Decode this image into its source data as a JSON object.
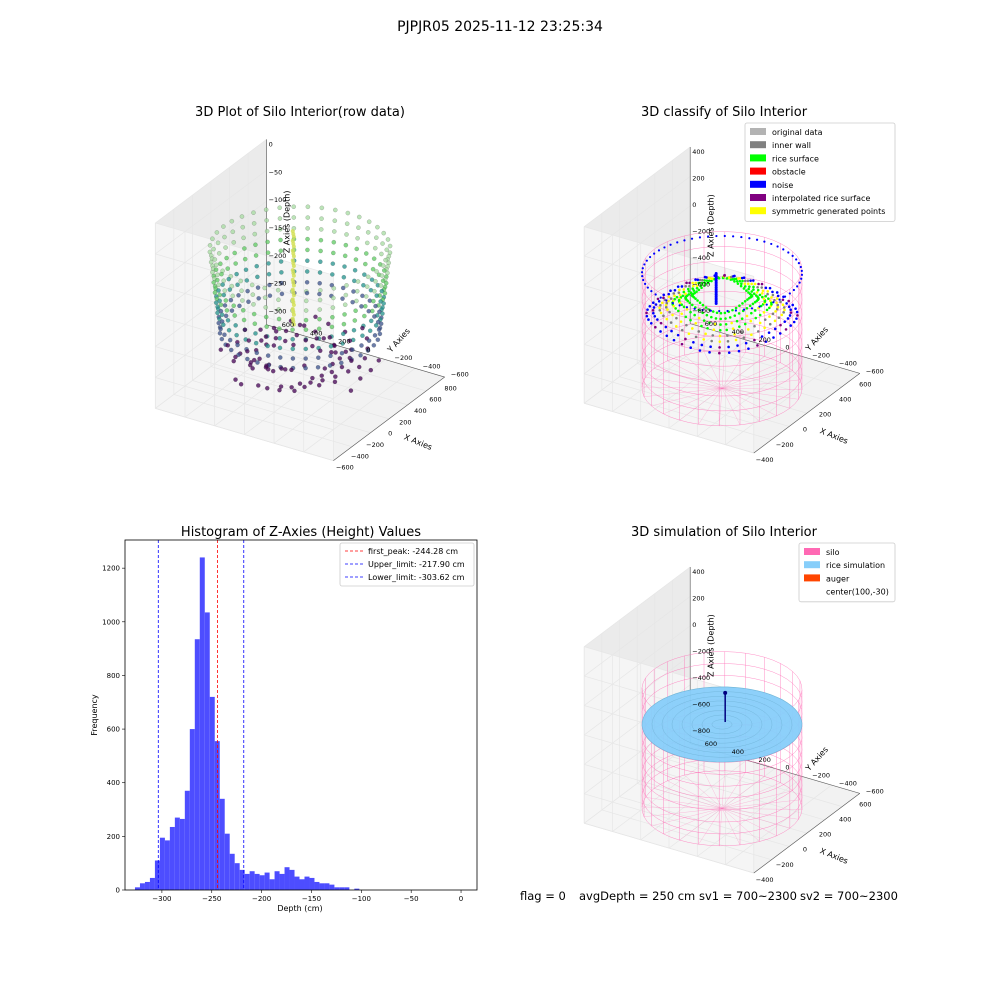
{
  "figure": {
    "suptitle": "PJPJR05 2025-11-12 23:25:34",
    "footer": {
      "flag": "flag = 0",
      "avg": "avgDepth = 250 cm",
      "sv1": "sv1 = 700~2300",
      "sv2": "sv2 = 700~2300"
    }
  },
  "colors": {
    "hist_bar": "#4d4dff",
    "peak_line": "#ff0000",
    "limit_line": "#0000ff",
    "silo": "#ff69b4",
    "rice_sim": "#87cefa",
    "auger": "#ff4500",
    "original": "#b3b3b3",
    "inner_wall": "#808080",
    "rice_surface": "#00ff00",
    "obstacle": "#ff0000",
    "noise": "#0000ff",
    "interp": "#800080",
    "symmetric": "#ffff00"
  },
  "panels": [
    {
      "title": "3D Plot of Silo Interior(row data)",
      "xlabel": "X Axies",
      "ylabel": "Y Axies",
      "zlabel": "Z Axies (Depth)",
      "xticks": [
        "−600",
        "−400",
        "−200",
        "0",
        "200",
        "400",
        "600",
        "800"
      ],
      "yticks": [
        "−600",
        "−400",
        "−200",
        "0",
        "200",
        "400",
        "600"
      ],
      "zticks": [
        "0",
        "−50",
        "−100",
        "−150",
        "−200",
        "−250",
        "−300"
      ]
    },
    {
      "title": "3D classify of Silo Interior",
      "xlabel": "X Axies",
      "ylabel": "Y Axies",
      "zlabel": "Z Axies (Depth)",
      "xticks": [
        "−400",
        "−200",
        "0",
        "200",
        "400",
        "600"
      ],
      "yticks": [
        "−600",
        "−400",
        "−200",
        "0",
        "200",
        "400",
        "600"
      ],
      "zticks": [
        "400",
        "200",
        "0",
        "−200",
        "−400",
        "−600",
        "−800"
      ],
      "legend": [
        {
          "label": "original data",
          "color": "#b3b3b3"
        },
        {
          "label": "inner wall",
          "color": "#808080"
        },
        {
          "label": "rice surface",
          "color": "#00ff00"
        },
        {
          "label": "obstacle",
          "color": "#ff0000"
        },
        {
          "label": "noise",
          "color": "#0000ff"
        },
        {
          "label": "interpolated rice surface",
          "color": "#800080"
        },
        {
          "label": "symmetric generated points",
          "color": "#ffff00"
        }
      ]
    },
    {
      "title": "3D simulation of Silo Interior",
      "xlabel": "X Axies",
      "ylabel": "Y Axies",
      "zlabel": "Z Axies (Depth)",
      "xticks": [
        "−400",
        "−200",
        "0",
        "200",
        "400",
        "600"
      ],
      "yticks": [
        "−600",
        "−400",
        "−200",
        "0",
        "200",
        "400",
        "600"
      ],
      "zticks": [
        "400",
        "200",
        "0",
        "−200",
        "−400",
        "−600",
        "−800"
      ],
      "legend": [
        {
          "label": "silo",
          "color": "#ff69b4"
        },
        {
          "label": "rice simulation",
          "color": "#87cefa"
        },
        {
          "label": "auger",
          "color": "#ff4500"
        },
        {
          "label": "center(100,-30)",
          "color": null
        }
      ]
    }
  ],
  "chart_data": {
    "type": "bar",
    "title": "Histogram of Z-Axies (Height) Values",
    "xlabel": "Depth (cm)",
    "ylabel": "Frequency",
    "xlim": [
      -337,
      16
    ],
    "ylim": [
      0,
      1305
    ],
    "xticks": [
      -300,
      -250,
      -200,
      -150,
      -100,
      -50,
      0
    ],
    "xtick_labels": [
      "−300",
      "−250",
      "−200",
      "−150",
      "−100",
      "−50",
      "0"
    ],
    "yticks": [
      0,
      200,
      400,
      600,
      800,
      1000,
      1200
    ],
    "bin_start": -327,
    "bin_width": 5,
    "values": [
      10,
      25,
      30,
      45,
      110,
      195,
      185,
      235,
      270,
      265,
      370,
      600,
      935,
      1240,
      1035,
      720,
      555,
      340,
      210,
      135,
      100,
      75,
      60,
      70,
      60,
      55,
      65,
      40,
      70,
      60,
      85,
      75,
      50,
      40,
      50,
      45,
      30,
      25,
      25,
      20,
      10,
      10,
      10,
      0,
      5,
      0
    ],
    "vlines": [
      {
        "label": "first_peak: -244.28 cm",
        "x": -244.28,
        "color": "#ff0000"
      },
      {
        "label": "Upper_limit: -217.90 cm",
        "x": -217.9,
        "color": "#0000ff"
      },
      {
        "label": "Lower_limit: -303.62 cm",
        "x": -303.62,
        "color": "#0000ff"
      }
    ],
    "legend_position": "upper right"
  }
}
